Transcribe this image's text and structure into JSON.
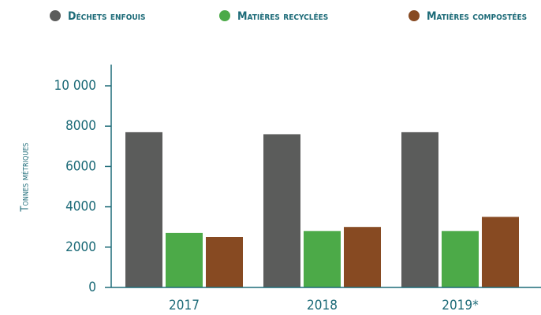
{
  "chart_data": {
    "type": "bar",
    "y_label": "Tonnes métriques",
    "categories": [
      "2017",
      "2018",
      "2019*"
    ],
    "series": [
      {
        "name": "Déchets enfouis",
        "color": "#5b5c5b",
        "values": [
          7700,
          7600,
          7700
        ]
      },
      {
        "name": "Matières recyclées",
        "color": "#4caa48",
        "values": [
          2700,
          2800,
          2800
        ]
      },
      {
        "name": "Matières compostées",
        "color": "#874a22",
        "values": [
          2500,
          3000,
          3500
        ]
      }
    ],
    "ylim": [
      0,
      10000
    ],
    "yticks": [
      0,
      2000,
      4000,
      6000,
      8000,
      {
        "value": 10000,
        "label": "10 000"
      }
    ],
    "grid": false,
    "legend": "top"
  }
}
